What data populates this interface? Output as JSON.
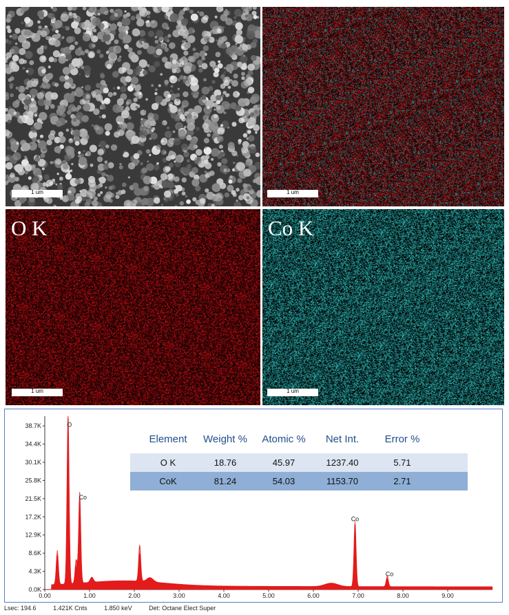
{
  "panels": {
    "sem": {
      "scale_label": "1 um"
    },
    "overlay": {
      "scale_label": "1 um"
    },
    "o_map": {
      "label": "O K",
      "scale_label": "1 um",
      "color": "#c0141c"
    },
    "co_map": {
      "label": "Co K",
      "scale_label": "1 um",
      "color": "#2ec6c6"
    }
  },
  "chart_data": {
    "type": "line",
    "ytick_labels": [
      "0.0K",
      "4.3K",
      "8.6K",
      "12.9K",
      "17.2K",
      "21.5K",
      "25.8K",
      "30.1K",
      "34.4K",
      "38.7K"
    ],
    "yticks": [
      0,
      4.3,
      8.6,
      12.9,
      17.2,
      21.5,
      25.8,
      30.1,
      34.4,
      38.7
    ],
    "xtick_labels": [
      "0.00",
      "1.00",
      "2.00",
      "3.00",
      "4.00",
      "5.00",
      "6.00",
      "7.00",
      "8.00",
      "9.00"
    ],
    "xticks": [
      0,
      1,
      2,
      3,
      4,
      5,
      6,
      7,
      8,
      9
    ],
    "xlim": [
      0,
      10
    ],
    "ylim": [
      0,
      41
    ],
    "series_color": "#e31b1b",
    "peaks": [
      {
        "x": 0.28,
        "y": 8.0
      },
      {
        "x": 0.52,
        "y": 40.5
      },
      {
        "x": 0.7,
        "y": 5.5
      },
      {
        "x": 0.78,
        "y": 21.5
      },
      {
        "x": 2.12,
        "y": 8.5
      },
      {
        "x": 6.93,
        "y": 15.5
      },
      {
        "x": 7.65,
        "y": 2.5
      }
    ],
    "annotations": [
      {
        "text": "O",
        "x": 0.55,
        "y": 38.5
      },
      {
        "text": "Co",
        "x": 0.85,
        "y": 21.3
      },
      {
        "text": "Co",
        "x": 6.93,
        "y": 16.2
      },
      {
        "text": "Co",
        "x": 7.7,
        "y": 3.2
      }
    ],
    "table": {
      "headers": [
        "Element",
        "Weight %",
        "Atomic %",
        "Net Int.",
        "Error %"
      ],
      "rows": [
        [
          "O K",
          "18.76",
          "45.97",
          "1237.40",
          "5.71"
        ],
        [
          "CoK",
          "81.24",
          "54.03",
          "1153.70",
          "2.71"
        ]
      ],
      "header_color": "#1f4e8c",
      "row_colors": [
        "#dce5f1",
        "#8fafd6"
      ]
    }
  },
  "status": {
    "lsec": "Lsec: 194.6",
    "cnts": "1.421K Cnts",
    "kev": "1.850 keV",
    "det": "Det: Octane Elect Super"
  }
}
